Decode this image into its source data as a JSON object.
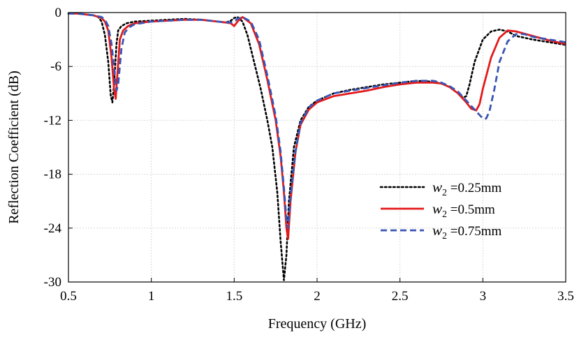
{
  "chart_data": {
    "type": "line",
    "title": "",
    "xlabel": "Frequency (GHz)",
    "ylabel": "Reflection Coefficient (dB)",
    "xlim": [
      0.5,
      3.5
    ],
    "ylim": [
      -30,
      0
    ],
    "x_ticks": [
      0.5,
      1,
      1.5,
      2,
      2.5,
      3,
      3.5
    ],
    "x_tick_labels": [
      "0.5",
      "1",
      "1.5",
      "2",
      "2.5",
      "3",
      "3.5"
    ],
    "y_ticks": [
      0,
      -6,
      -12,
      -18,
      -24,
      -30
    ],
    "y_tick_labels": [
      "0",
      "-6",
      "-12",
      "-18",
      "-24",
      "-30"
    ],
    "grid": true,
    "legend_position": "center-right",
    "series": [
      {
        "name": "w2 =0.25mm",
        "name_var": "w",
        "name_sub": "2",
        "name_rest": " =0.25mm",
        "color": "#000000",
        "style": "dotted",
        "x": [
          0.5,
          0.55,
          0.6,
          0.65,
          0.68,
          0.7,
          0.72,
          0.74,
          0.755,
          0.765,
          0.775,
          0.79,
          0.8,
          0.82,
          0.85,
          0.9,
          1.0,
          1.1,
          1.2,
          1.3,
          1.4,
          1.45,
          1.48,
          1.5,
          1.52,
          1.55,
          1.58,
          1.62,
          1.66,
          1.7,
          1.73,
          1.76,
          1.78,
          1.8,
          1.815,
          1.83,
          1.86,
          1.9,
          1.95,
          2.0,
          2.1,
          2.2,
          2.3,
          2.4,
          2.5,
          2.6,
          2.7,
          2.75,
          2.8,
          2.85,
          2.88,
          2.9,
          2.92,
          2.95,
          3.0,
          3.05,
          3.1,
          3.15,
          3.2,
          3.3,
          3.4,
          3.5
        ],
        "y": [
          -0.1,
          -0.1,
          -0.2,
          -0.3,
          -0.5,
          -1.0,
          -2.5,
          -5.5,
          -9.2,
          -10.0,
          -8.0,
          -3.5,
          -2.0,
          -1.5,
          -1.2,
          -1.0,
          -0.9,
          -0.8,
          -0.7,
          -0.8,
          -1.0,
          -1.1,
          -0.9,
          -0.6,
          -0.5,
          -1.0,
          -2.5,
          -5.5,
          -8.5,
          -12.0,
          -15.0,
          -20.0,
          -25.5,
          -29.8,
          -27.0,
          -21.0,
          -15.0,
          -12.0,
          -10.5,
          -9.8,
          -9.0,
          -8.6,
          -8.3,
          -8.0,
          -7.8,
          -7.6,
          -7.7,
          -7.9,
          -8.3,
          -9.0,
          -9.5,
          -9.3,
          -8.0,
          -5.5,
          -3.0,
          -2.1,
          -1.9,
          -2.1,
          -2.6,
          -3.0,
          -3.3,
          -3.6
        ]
      },
      {
        "name": "w2 =0.5mm",
        "name_var": "w",
        "name_sub": "2",
        "name_rest": " =0.5mm",
        "color": "#e31a1c",
        "style": "solid",
        "x": [
          0.5,
          0.55,
          0.6,
          0.65,
          0.7,
          0.72,
          0.74,
          0.76,
          0.775,
          0.785,
          0.795,
          0.81,
          0.83,
          0.86,
          0.9,
          1.0,
          1.1,
          1.2,
          1.3,
          1.4,
          1.45,
          1.48,
          1.5,
          1.52,
          1.55,
          1.6,
          1.65,
          1.7,
          1.75,
          1.78,
          1.8,
          1.815,
          1.825,
          1.84,
          1.87,
          1.9,
          1.95,
          2.0,
          2.1,
          2.2,
          2.3,
          2.4,
          2.5,
          2.6,
          2.7,
          2.75,
          2.8,
          2.85,
          2.9,
          2.93,
          2.96,
          2.98,
          3.0,
          3.05,
          3.1,
          3.15,
          3.2,
          3.3,
          3.4,
          3.5
        ],
        "y": [
          -0.1,
          -0.1,
          -0.2,
          -0.3,
          -0.6,
          -1.0,
          -2.0,
          -5.0,
          -8.5,
          -9.6,
          -7.0,
          -3.0,
          -2.0,
          -1.5,
          -1.2,
          -1.0,
          -0.9,
          -0.8,
          -0.8,
          -1.0,
          -1.1,
          -1.2,
          -1.5,
          -1.0,
          -0.5,
          -1.2,
          -3.5,
          -7.5,
          -12.0,
          -16.0,
          -20.0,
          -24.0,
          -25.2,
          -21.0,
          -15.5,
          -12.5,
          -10.8,
          -10.0,
          -9.3,
          -9.0,
          -8.7,
          -8.3,
          -8.0,
          -7.8,
          -7.8,
          -7.9,
          -8.3,
          -9.0,
          -10.0,
          -10.7,
          -10.9,
          -10.2,
          -8.5,
          -5.0,
          -2.8,
          -2.0,
          -2.1,
          -2.6,
          -3.1,
          -3.5
        ]
      },
      {
        "name": "w2 =0.75mm",
        "name_var": "w",
        "name_sub": "2",
        "name_rest": " =0.75mm",
        "color": "#3a55b4",
        "style": "dashed",
        "x": [
          0.5,
          0.55,
          0.6,
          0.65,
          0.7,
          0.72,
          0.74,
          0.76,
          0.78,
          0.79,
          0.8,
          0.82,
          0.84,
          0.87,
          0.9,
          1.0,
          1.1,
          1.2,
          1.3,
          1.4,
          1.45,
          1.48,
          1.5,
          1.52,
          1.55,
          1.6,
          1.65,
          1.7,
          1.75,
          1.78,
          1.8,
          1.815,
          1.825,
          1.84,
          1.87,
          1.9,
          1.95,
          2.0,
          2.1,
          2.2,
          2.3,
          2.4,
          2.5,
          2.6,
          2.7,
          2.75,
          2.8,
          2.85,
          2.9,
          2.95,
          3.0,
          3.02,
          3.04,
          3.07,
          3.1,
          3.15,
          3.2,
          3.25,
          3.3,
          3.4,
          3.5
        ],
        "y": [
          -0.1,
          -0.1,
          -0.2,
          -0.3,
          -0.5,
          -0.8,
          -1.5,
          -3.5,
          -7.0,
          -8.7,
          -8.0,
          -4.0,
          -2.2,
          -1.6,
          -1.3,
          -1.0,
          -0.9,
          -0.8,
          -0.8,
          -1.0,
          -1.1,
          -1.1,
          -1.0,
          -0.7,
          -0.5,
          -1.0,
          -3.0,
          -7.0,
          -11.5,
          -15.5,
          -19.5,
          -23.0,
          -24.0,
          -20.5,
          -15.5,
          -12.3,
          -10.6,
          -9.8,
          -9.0,
          -8.7,
          -8.4,
          -8.1,
          -7.8,
          -7.6,
          -7.6,
          -7.8,
          -8.2,
          -8.8,
          -9.8,
          -10.8,
          -11.8,
          -11.8,
          -11.0,
          -8.5,
          -5.5,
          -3.2,
          -2.4,
          -2.4,
          -2.7,
          -3.0,
          -3.3
        ]
      }
    ]
  }
}
